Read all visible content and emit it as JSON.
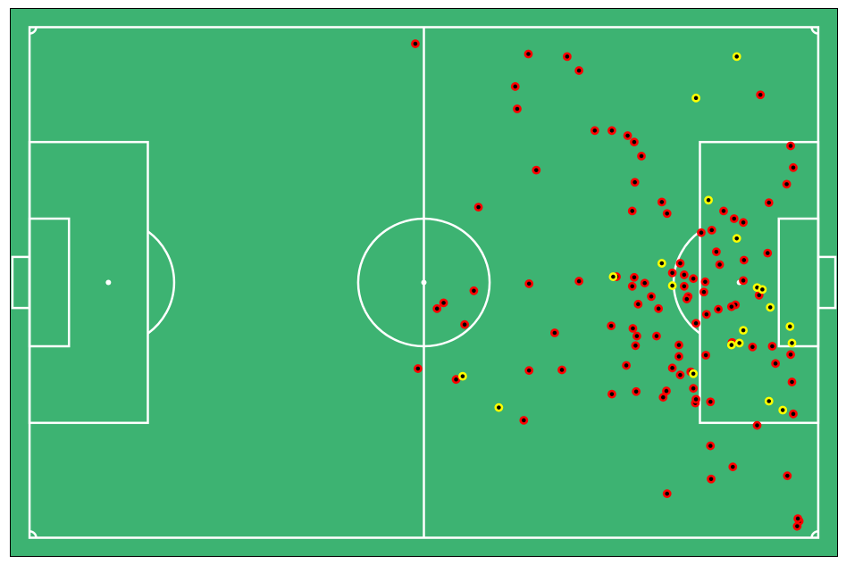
{
  "chart_data": {
    "type": "scatter",
    "title": "",
    "xlabel": "",
    "ylabel": "",
    "pitch": {
      "length": 120,
      "width": 80,
      "xlim": [
        -3,
        123
      ],
      "ylim": [
        -3,
        83
      ],
      "grid": false,
      "penalty_area": {
        "depth": 18,
        "y": [
          18,
          62
        ]
      },
      "six_yard_box": {
        "depth": 6,
        "y": [
          30,
          50
        ]
      },
      "goal": {
        "depth": 2.6,
        "y": [
          36,
          44
        ]
      },
      "penalty_spot_distance": 12,
      "center_circle_radius": 10,
      "arc_radius": 10,
      "corner_arc_radius": 1
    },
    "colors": {
      "pitch": "#3db372",
      "lines": "#ffffff",
      "border": "#000000",
      "marker_edge": "#ff0000",
      "marker_center": "#000000",
      "highlight_edge": "#ffff00",
      "highlight_center": "#000000"
    },
    "series": [
      {
        "values": [
          [
            58.7,
            77.4
          ],
          [
            81.8,
            75.4
          ],
          [
            75.9,
            75.8
          ],
          [
            83.6,
            73.2
          ],
          [
            73.9,
            70.7
          ],
          [
            74.2,
            67.2
          ],
          [
            86.0,
            63.8
          ],
          [
            88.6,
            63.8
          ],
          [
            91.0,
            63.0
          ],
          [
            92.0,
            62.0
          ],
          [
            93.1,
            59.8
          ],
          [
            92.1,
            55.7
          ],
          [
            77.1,
            57.6
          ],
          [
            68.3,
            51.8
          ],
          [
            91.7,
            51.2
          ],
          [
            96.2,
            52.6
          ],
          [
            97.0,
            50.8
          ],
          [
            105.6,
            51.2
          ],
          [
            107.2,
            50.0
          ],
          [
            103.8,
            48.2
          ],
          [
            104.5,
            44.8
          ],
          [
            105.0,
            42.8
          ],
          [
            102.8,
            40.1
          ],
          [
            99.0,
            43.0
          ],
          [
            100.2,
            37.8
          ],
          [
            103.0,
            35.0
          ],
          [
            101.4,
            33.6
          ],
          [
            98.8,
            30.2
          ],
          [
            102.9,
            28.6
          ],
          [
            95.4,
            31.6
          ],
          [
            92.4,
            31.6
          ],
          [
            92.2,
            30.1
          ],
          [
            91.8,
            32.8
          ],
          [
            95.7,
            35.9
          ],
          [
            92.6,
            36.6
          ],
          [
            93.6,
            39.9
          ],
          [
            92.0,
            40.8
          ],
          [
            91.7,
            39.4
          ],
          [
            97.8,
            41.5
          ],
          [
            99.6,
            41.2
          ],
          [
            101.0,
            40.6
          ],
          [
            102.6,
            38.5
          ],
          [
            104.8,
            35.8
          ],
          [
            107.4,
            36.5
          ],
          [
            111.0,
            38.0
          ],
          [
            108.7,
            43.5
          ],
          [
            112.5,
            52.5
          ],
          [
            115.2,
            55.4
          ],
          [
            116.2,
            58.0
          ],
          [
            115.8,
            61.4
          ],
          [
            111.2,
            69.4
          ],
          [
            115.8,
            28.7
          ],
          [
            116.0,
            24.4
          ],
          [
            116.2,
            19.4
          ],
          [
            110.7,
            17.6
          ],
          [
            113.5,
            27.3
          ],
          [
            113.0,
            30.0
          ],
          [
            110.0,
            29.9
          ],
          [
            106.9,
            30.6
          ],
          [
            100.6,
            26.0
          ],
          [
            98.8,
            28.4
          ],
          [
            99.0,
            25.5
          ],
          [
            97.8,
            26.6
          ],
          [
            96.9,
            23.0
          ],
          [
            96.4,
            22.0
          ],
          [
            92.3,
            22.9
          ],
          [
            90.8,
            27.0
          ],
          [
            101.3,
            21.1
          ],
          [
            101.0,
            23.4
          ],
          [
            101.4,
            21.7
          ],
          [
            103.6,
            21.3
          ],
          [
            103.6,
            14.4
          ],
          [
            107.0,
            11.1
          ],
          [
            103.7,
            9.2
          ],
          [
            97.0,
            6.9
          ],
          [
            115.3,
            9.7
          ],
          [
            117.1,
            2.6
          ],
          [
            116.8,
            1.8
          ],
          [
            116.9,
            3.0
          ],
          [
            88.6,
            22.5
          ],
          [
            81.0,
            26.3
          ],
          [
            79.9,
            32.1
          ],
          [
            76.0,
            26.2
          ],
          [
            75.2,
            18.4
          ],
          [
            66.2,
            33.4
          ],
          [
            63.0,
            36.8
          ],
          [
            62.0,
            35.9
          ],
          [
            76.0,
            39.8
          ],
          [
            67.6,
            38.7
          ],
          [
            59.1,
            26.5
          ],
          [
            64.9,
            24.8
          ],
          [
            89.3,
            40.9
          ],
          [
            88.5,
            33.2
          ],
          [
            94.6,
            37.8
          ],
          [
            83.6,
            40.2
          ],
          [
            100.0,
            37.4
          ],
          [
            102.2,
            47.8
          ],
          [
            108.6,
            49.4
          ],
          [
            108.6,
            40.3
          ],
          [
            112.3,
            44.6
          ],
          [
            99.6,
            39.4
          ],
          [
            106.8,
            36.2
          ]
        ]
      },
      {
        "values": [
          [
            107.6,
            75.4
          ],
          [
            101.4,
            68.9
          ],
          [
            103.3,
            52.9
          ],
          [
            107.6,
            46.9
          ],
          [
            110.7,
            39.2
          ],
          [
            111.5,
            38.9
          ],
          [
            112.7,
            36.1
          ],
          [
            108.6,
            32.5
          ],
          [
            106.8,
            30.2
          ],
          [
            101.0,
            25.7
          ],
          [
            65.9,
            25.3
          ],
          [
            71.4,
            20.4
          ],
          [
            88.8,
            40.9
          ],
          [
            97.8,
            39.5
          ],
          [
            96.2,
            43.0
          ],
          [
            112.5,
            21.4
          ],
          [
            108.0,
            30.5
          ],
          [
            114.6,
            20.0
          ],
          [
            116.0,
            30.5
          ],
          [
            115.7,
            33.1
          ]
        ],
        "highlight": true
      }
    ]
  }
}
